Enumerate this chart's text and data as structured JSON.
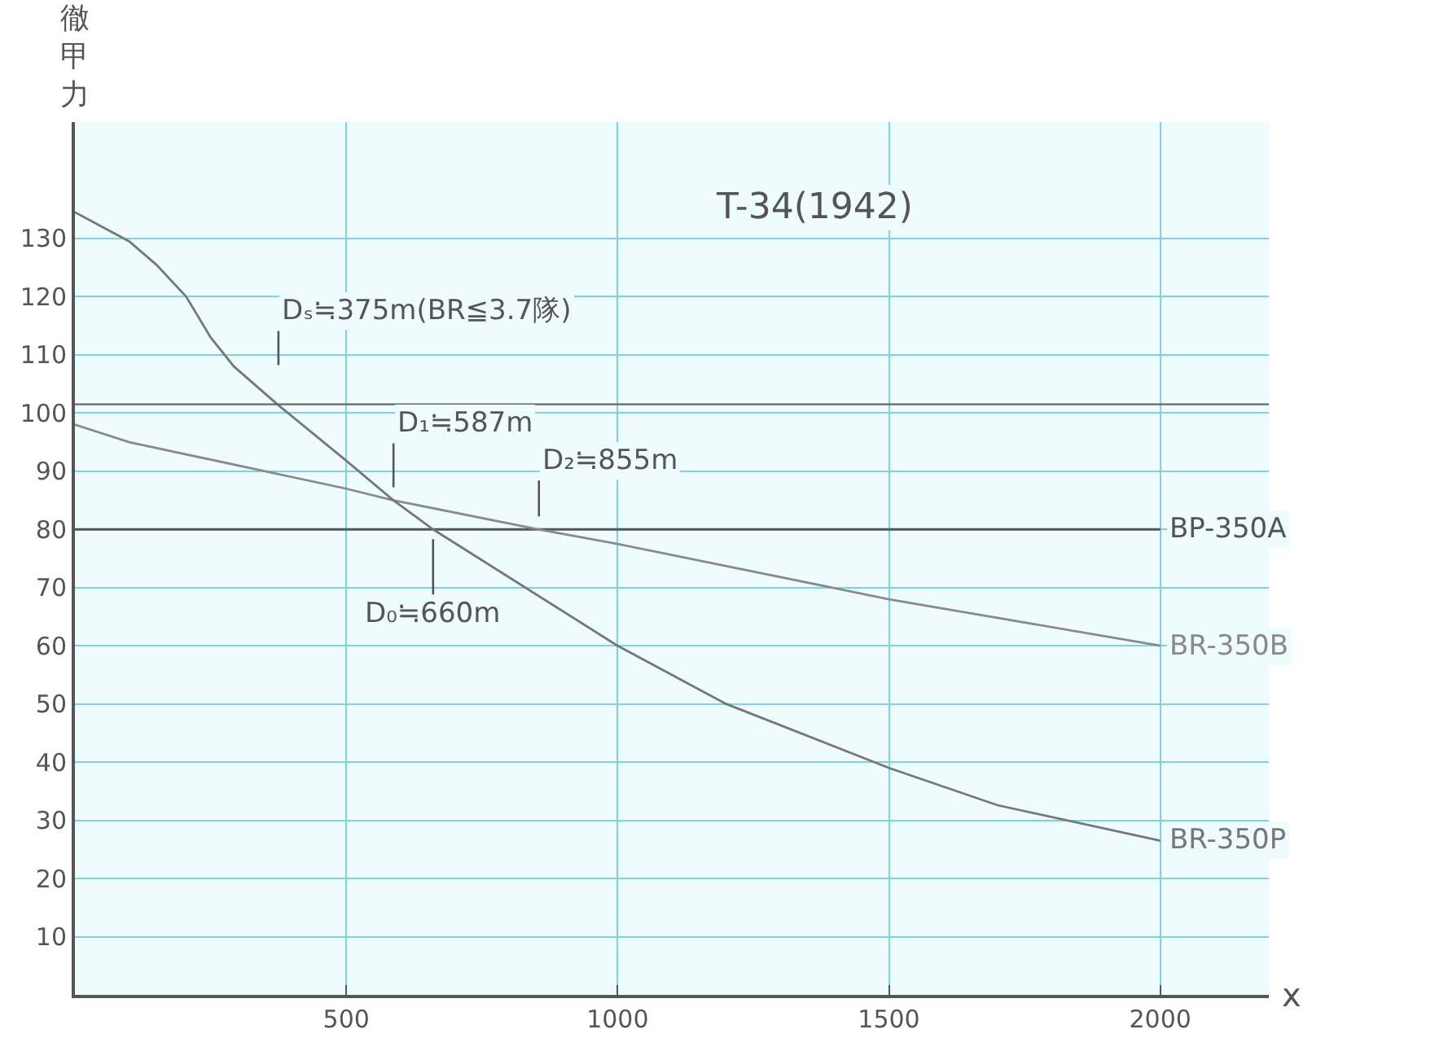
{
  "chart_data": {
    "type": "line",
    "title": "T-34(1942)",
    "xlabel": "x",
    "ylabel": "徹甲力",
    "xlim": [
      0,
      2200
    ],
    "xticks": [
      500,
      1000,
      1500,
      2000
    ],
    "ylim": [
      0,
      150
    ],
    "yticks": [
      10,
      20,
      30,
      40,
      50,
      60,
      70,
      80,
      90,
      100,
      110,
      120,
      130
    ],
    "grid": true,
    "legend": false,
    "line_style": "solid",
    "series": [
      {
        "name": "BP-350A",
        "color": "#555555",
        "x": [
          0,
          2000
        ],
        "values": [
          80,
          80
        ]
      },
      {
        "name": "BR-350B",
        "color": "#8a8a8a",
        "x": [
          0,
          100,
          500,
          587,
          855,
          1000,
          1500,
          2000
        ],
        "values": [
          98,
          95,
          87,
          85,
          80,
          77.5,
          68,
          60
        ]
      },
      {
        "name": "BR-350P",
        "color": "#777777",
        "x": [
          0,
          100,
          150,
          205,
          250,
          293,
          373,
          500,
          587,
          660,
          1000,
          1200,
          1500,
          1700,
          2000
        ],
        "values": [
          134.5,
          129.5,
          125.5,
          120,
          113,
          108,
          101.5,
          91.8,
          85,
          80,
          60,
          50,
          39,
          32.6,
          26.5
        ]
      }
    ],
    "ref_lines": [
      {
        "axis": "y",
        "value": 101.5,
        "color": "#666666"
      }
    ],
    "annotations": [
      {
        "text": "Dₛ≒375m(BR≦3.7隊)",
        "x": 375,
        "y": 101.5
      },
      {
        "text": "D₁≒587m",
        "x": 587,
        "y": 85
      },
      {
        "text": "D₂≒855m",
        "x": 855,
        "y": 80
      },
      {
        "text": "D₀≒660m",
        "x": 660,
        "y": 80
      }
    ]
  }
}
